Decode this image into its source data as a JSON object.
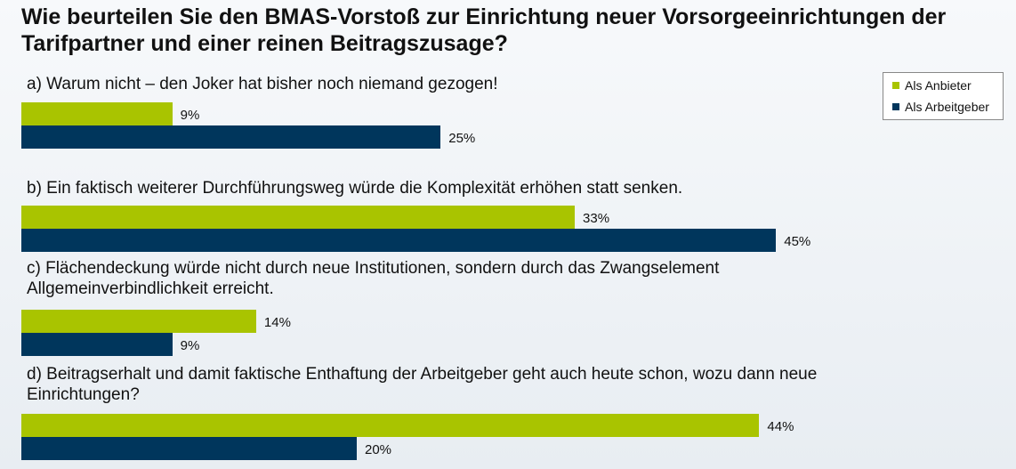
{
  "title": "Wie beurteilen Sie den BMAS-Vorstoß zur Einrichtung neuer Vorsorgeeinrichtungen der Tarifpartner und einer reinen Beitragszusage?",
  "legend": {
    "items": [
      {
        "label": "Als Anbieter",
        "color": "#a9c400"
      },
      {
        "label": "Als Arbeitgeber",
        "color": "#00365c"
      }
    ]
  },
  "chart_data": {
    "type": "bar",
    "orientation": "horizontal",
    "categories": [
      "a) Warum nicht – den Joker hat bisher noch niemand gezogen!",
      "b) Ein faktisch weiterer Durchführungsweg würde die Komplexität erhöhen statt senken.",
      "c) Flächendeckung würde nicht durch neue Institutionen, sondern durch das Zwangselement Allgemeinverbindlichkeit erreicht.",
      "d) Beitragserhalt und damit faktische Enthaftung der Arbeitgeber geht auch heute schon, wozu dann neue Einrichtungen?"
    ],
    "series": [
      {
        "name": "Als Anbieter",
        "color": "#a9c400",
        "values": [
          9,
          33,
          14,
          44
        ],
        "labels": [
          "9%",
          "33%",
          "14%",
          "44%"
        ]
      },
      {
        "name": "Als Arbeitgeber",
        "color": "#00365c",
        "values": [
          25,
          45,
          9,
          20
        ],
        "labels": [
          "25%",
          "45%",
          "9%",
          "20%"
        ]
      }
    ],
    "unit": "%",
    "xlim": [
      0,
      60
    ],
    "legend_position": "top-right",
    "grid": false
  }
}
